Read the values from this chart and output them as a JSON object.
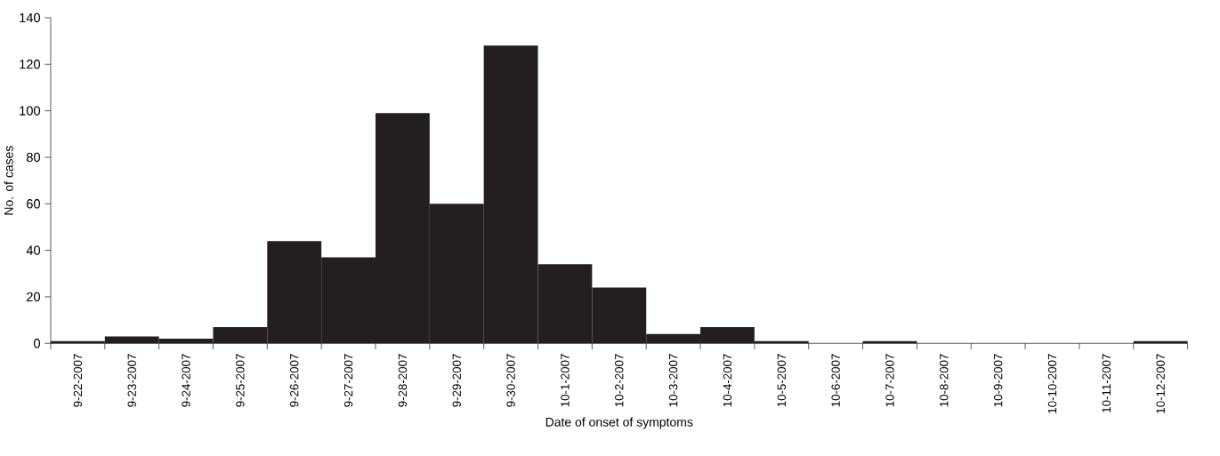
{
  "chart_data": {
    "type": "bar",
    "xlabel": "Date of onset of symptoms",
    "ylabel": "No. of cases",
    "categories": [
      "9-22-2007",
      "9-23-2007",
      "9-24-2007",
      "9-25-2007",
      "9-26-2007",
      "9-27-2007",
      "9-28-2007",
      "9-29-2007",
      "9-30-2007",
      "10-1-2007",
      "10-2-2007",
      "10-3-2007",
      "10-4-2007",
      "10-5-2007",
      "10-6-2007",
      "10-7-2007",
      "10-8-2007",
      "10-9-2007",
      "10-10-2007",
      "10-11-2007",
      "10-12-2007"
    ],
    "values": [
      1,
      3,
      2,
      7,
      44,
      37,
      99,
      60,
      128,
      34,
      24,
      4,
      7,
      1,
      0,
      1,
      0,
      0,
      0,
      0,
      1
    ],
    "color": "#231f20",
    "ylim": [
      0,
      140
    ],
    "yticks": [
      0,
      20,
      40,
      60,
      80,
      100,
      120,
      140
    ]
  }
}
